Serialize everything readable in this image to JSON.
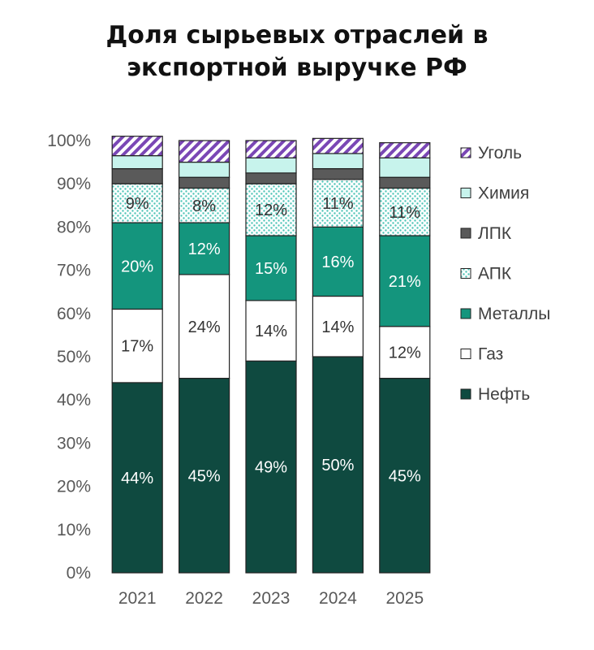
{
  "title_lines": [
    "Доля сырьевых отраслей в",
    "экспортной выручке РФ"
  ],
  "chart_data": {
    "type": "bar",
    "stacked": true,
    "title": "Доля сырьевых отраслей в экспортной выручке РФ",
    "categories": [
      "2021",
      "2022",
      "2023",
      "2024",
      "2025"
    ],
    "ylim": [
      0,
      100
    ],
    "yticks": [
      "0%",
      "10%",
      "20%",
      "30%",
      "40%",
      "50%",
      "60%",
      "70%",
      "80%",
      "90%",
      "100%"
    ],
    "legend_position": "right",
    "series": [
      {
        "name": "Нефть",
        "values": [
          44,
          45,
          49,
          50,
          45
        ],
        "labels": [
          "44%",
          "45%",
          "49%",
          "50%",
          "45%"
        ],
        "color": "#0f4a40",
        "pattern": "solid",
        "label_color": "#ffffff"
      },
      {
        "name": "Газ",
        "values": [
          17,
          24,
          14,
          14,
          12
        ],
        "labels": [
          "17%",
          "24%",
          "14%",
          "14%",
          "12%"
        ],
        "color": "#ffffff",
        "pattern": "solid",
        "label_color": "#333333"
      },
      {
        "name": "Металлы",
        "values": [
          20,
          12,
          15,
          16,
          21
        ],
        "labels": [
          "20%",
          "12%",
          "15%",
          "16%",
          "21%"
        ],
        "color": "#14957d",
        "pattern": "solid",
        "label_color": "#ffffff"
      },
      {
        "name": "АПК",
        "values": [
          9,
          8,
          12,
          11,
          11
        ],
        "labels": [
          "9%",
          "8%",
          "12%",
          "11%",
          "11%"
        ],
        "color": "#5dcdbf",
        "pattern": "dots",
        "label_color": "#333333"
      },
      {
        "name": "ЛПК",
        "values": [
          3.5,
          2.5,
          2.5,
          2.5,
          2.5
        ],
        "labels": [
          "",
          "",
          "",
          "",
          ""
        ],
        "color": "#5a5a5a",
        "pattern": "solid",
        "label_color": "#ffffff"
      },
      {
        "name": "Химия",
        "values": [
          3,
          3.5,
          3.5,
          3.5,
          4.5
        ],
        "labels": [
          "",
          "",
          "",
          "",
          ""
        ],
        "color": "#c7f3ec",
        "pattern": "solid",
        "label_color": "#333333"
      },
      {
        "name": "Уголь",
        "values": [
          4.5,
          5,
          4,
          3.5,
          3.5
        ],
        "labels": [
          "",
          "",
          "",
          "",
          ""
        ],
        "color": "#7a47b5",
        "pattern": "hatch",
        "label_color": "#333333"
      }
    ],
    "legend_order": [
      "Уголь",
      "Химия",
      "ЛПК",
      "АПК",
      "Металлы",
      "Газ",
      "Нефть"
    ]
  }
}
